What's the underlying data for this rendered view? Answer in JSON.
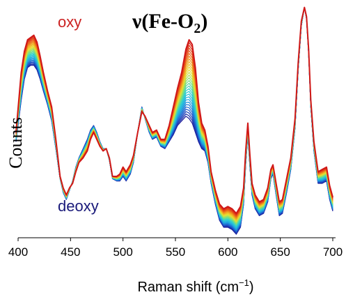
{
  "chart_data": {
    "type": "line",
    "title_prefix": "ν(Fe-O",
    "title_sub": "2",
    "title_suffix": ")",
    "xlabel": "Raman shift (cm",
    "xlabel_sup": "−1",
    "xlabel_close": ")",
    "ylabel": "Counts",
    "xlim": [
      400,
      700
    ],
    "xticks": [
      "400",
      "450",
      "500",
      "550",
      "600",
      "650",
      "700"
    ],
    "y_ticks_shown": false,
    "grid": false,
    "legend": "none",
    "annotations": {
      "top": "oxy",
      "bottom": "deoxy"
    },
    "colors": {
      "oxy": "#cc2222",
      "deoxy": "#1a1a7a",
      "gradient": [
        "#1a1a9a",
        "#1e5fd0",
        "#1fa8e0",
        "#2ecfd0",
        "#7fe07a",
        "#e8e030",
        "#f0a020",
        "#e85018",
        "#d01818"
      ]
    },
    "series_count": 30,
    "oxy_spectrum": {
      "x": [
        398,
        403,
        406,
        409,
        412,
        415,
        418,
        421,
        424,
        428,
        432,
        436,
        440,
        443,
        446,
        449,
        452,
        455,
        458,
        462,
        466,
        469,
        472,
        475,
        478,
        481,
        484,
        487,
        490,
        494,
        497,
        500,
        503,
        507,
        510,
        514,
        518,
        521,
        525,
        528,
        532,
        536,
        540,
        544,
        548,
        552,
        556,
        560,
        563,
        566,
        569,
        572,
        575,
        578,
        581,
        584,
        588,
        592,
        596,
        600,
        604,
        608,
        612,
        615,
        617,
        619,
        621,
        623,
        626,
        630,
        634,
        638,
        641,
        643,
        646,
        649,
        652,
        656,
        660,
        664,
        667,
        670,
        673,
        675,
        677,
        679,
        682,
        686,
        690,
        694,
        697,
        700
      ],
      "y": [
        0.44,
        0.7,
        0.79,
        0.84,
        0.85,
        0.86,
        0.83,
        0.77,
        0.7,
        0.62,
        0.55,
        0.41,
        0.25,
        0.2,
        0.17,
        0.2,
        0.22,
        0.27,
        0.31,
        0.33,
        0.36,
        0.41,
        0.44,
        0.41,
        0.38,
        0.36,
        0.37,
        0.33,
        0.25,
        0.25,
        0.26,
        0.29,
        0.27,
        0.3,
        0.34,
        0.44,
        0.53,
        0.51,
        0.47,
        0.44,
        0.45,
        0.41,
        0.41,
        0.47,
        0.55,
        0.63,
        0.7,
        0.8,
        0.84,
        0.82,
        0.72,
        0.57,
        0.48,
        0.45,
        0.38,
        0.27,
        0.19,
        0.13,
        0.11,
        0.12,
        0.11,
        0.09,
        0.12,
        0.2,
        0.36,
        0.48,
        0.34,
        0.22,
        0.17,
        0.14,
        0.15,
        0.2,
        0.28,
        0.3,
        0.22,
        0.14,
        0.15,
        0.24,
        0.33,
        0.5,
        0.74,
        0.92,
        0.98,
        0.94,
        0.8,
        0.58,
        0.4,
        0.27,
        0.28,
        0.29,
        0.21,
        0.16
      ]
    },
    "deoxy_spectrum": {
      "x": [
        398,
        403,
        406,
        409,
        412,
        415,
        418,
        421,
        424,
        428,
        432,
        436,
        440,
        443,
        446,
        449,
        452,
        455,
        458,
        462,
        466,
        469,
        472,
        475,
        478,
        481,
        484,
        487,
        490,
        494,
        497,
        500,
        503,
        507,
        510,
        514,
        518,
        521,
        525,
        528,
        532,
        536,
        540,
        544,
        548,
        552,
        556,
        560,
        563,
        566,
        569,
        572,
        575,
        578,
        581,
        584,
        588,
        592,
        596,
        600,
        604,
        608,
        612,
        615,
        617,
        619,
        621,
        623,
        626,
        630,
        634,
        638,
        641,
        643,
        646,
        649,
        652,
        656,
        660,
        664,
        667,
        670,
        673,
        675,
        677,
        679,
        682,
        686,
        690,
        694,
        697,
        700
      ],
      "y": [
        0.4,
        0.58,
        0.67,
        0.72,
        0.73,
        0.73,
        0.71,
        0.67,
        0.62,
        0.56,
        0.49,
        0.37,
        0.24,
        0.18,
        0.15,
        0.19,
        0.23,
        0.29,
        0.33,
        0.37,
        0.41,
        0.45,
        0.47,
        0.44,
        0.4,
        0.37,
        0.37,
        0.32,
        0.24,
        0.23,
        0.23,
        0.25,
        0.23,
        0.26,
        0.31,
        0.44,
        0.55,
        0.5,
        0.44,
        0.41,
        0.42,
        0.38,
        0.37,
        0.4,
        0.43,
        0.47,
        0.49,
        0.51,
        0.5,
        0.48,
        0.44,
        0.4,
        0.37,
        0.36,
        0.31,
        0.22,
        0.13,
        0.06,
        0.03,
        0.03,
        0.02,
        0.0,
        0.03,
        0.13,
        0.3,
        0.43,
        0.29,
        0.17,
        0.11,
        0.08,
        0.09,
        0.14,
        0.24,
        0.26,
        0.17,
        0.08,
        0.09,
        0.18,
        0.28,
        0.46,
        0.71,
        0.9,
        0.98,
        0.93,
        0.78,
        0.55,
        0.36,
        0.22,
        0.22,
        0.23,
        0.15,
        0.1
      ]
    }
  }
}
